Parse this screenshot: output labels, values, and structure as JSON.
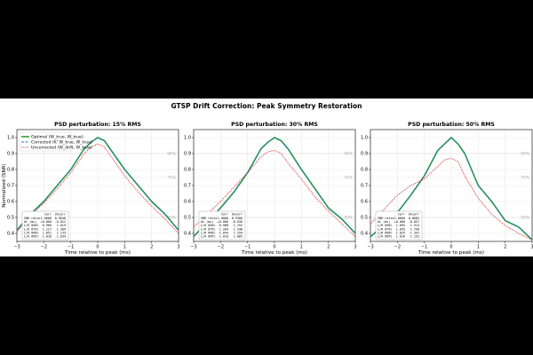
{
  "figure": {
    "title": "GTSP Drift Correction: Peak Symmetry Restoration",
    "colors": {
      "optimal": "#2ca02c",
      "corrected": "#1f77b4",
      "uncorrected": "#d62728",
      "grid": "#e6e6e6",
      "ref": "#bbbbbb"
    }
  },
  "chart_data": [
    {
      "type": "line",
      "title": "PSD perturbation: 15% RMS",
      "xlabel": "Time relative to peak (ms)",
      "ylabel": "Normalized ⟨SNR⟩",
      "xlim": [
        -3,
        3
      ],
      "ylim": [
        0.35,
        1.05
      ],
      "xticks": [
        "−3",
        "−2",
        "−1",
        "0",
        "1",
        "2",
        "3"
      ],
      "yticks": [
        "0.4",
        "0.5",
        "0.6",
        "0.7",
        "0.8",
        "0.9",
        "1.0"
      ],
      "ref_lines": [
        {
          "y": 0.9,
          "label": "90%"
        },
        {
          "y": 0.75,
          "label": "75%"
        },
        {
          "y": 0.5,
          "label": "50%"
        }
      ],
      "legend": {
        "placement": "top-left",
        "entries": [
          "Optimal (W_true, W_true)",
          "Corrected (K' W_true, W_true)",
          "Uncorrected (W_drift, W_true)"
        ]
      },
      "series": [
        {
          "name": "Optimal (W_true, W_true)",
          "style": "solid",
          "x": [
            -3,
            -2.5,
            -2,
            -1.5,
            -1,
            -0.5,
            -0.25,
            0,
            0.25,
            0.5,
            1,
            1.5,
            2,
            2.5,
            3
          ],
          "y": [
            0.42,
            0.52,
            0.6,
            0.7,
            0.8,
            0.93,
            0.97,
            1.0,
            0.98,
            0.92,
            0.8,
            0.7,
            0.6,
            0.52,
            0.42
          ]
        },
        {
          "name": "Corrected (K' W_true, W_true)",
          "style": "dashed",
          "x": [
            -3,
            -2.5,
            -2,
            -1.5,
            -1,
            -0.5,
            -0.25,
            0,
            0.25,
            0.5,
            1,
            1.5,
            2,
            2.5,
            3
          ],
          "y": [
            0.42,
            0.52,
            0.6,
            0.7,
            0.8,
            0.93,
            0.97,
            1.0,
            0.98,
            0.92,
            0.8,
            0.7,
            0.6,
            0.52,
            0.42
          ]
        },
        {
          "name": "Uncorrected (W_drift, W_true)",
          "style": "dotted",
          "x": [
            -3,
            -2.5,
            -2,
            -1.5,
            -1,
            -0.5,
            -0.25,
            0,
            0.25,
            0.5,
            1,
            1.5,
            2,
            2.5,
            3
          ],
          "y": [
            0.41,
            0.51,
            0.59,
            0.68,
            0.78,
            0.9,
            0.94,
            0.96,
            0.94,
            0.88,
            0.76,
            0.66,
            0.57,
            0.49,
            0.4
          ]
        }
      ],
      "table": {
        "headers": [
          "",
          "Corr",
          "Uncorr"
        ],
        "rows": [
          [
            "SNR ratio",
            "1.0000",
            "0.9648"
          ],
          [
            "Δt (ms)",
            "+0.000",
            "-0.012"
          ],
          [
            "L/R @50%",
            "0.966",
            "1.019"
          ],
          [
            "L/R @75%",
            "1.127",
            "1.309"
          ],
          [
            "L/R @90%",
            "1.051",
            "1.133"
          ],
          [
            "L/R @95%",
            "1.016",
            "1.034"
          ]
        ]
      }
    },
    {
      "type": "line",
      "title": "PSD perturbation: 30% RMS",
      "xlabel": "Time relative to peak (ms)",
      "ylabel": "",
      "xlim": [
        -3,
        3
      ],
      "ylim": [
        0.35,
        1.05
      ],
      "xticks": [
        "−3",
        "−2",
        "−1",
        "0",
        "1",
        "2",
        "3"
      ],
      "yticks": [
        "0.4",
        "0.5",
        "0.6",
        "0.7",
        "0.8",
        "0.9",
        "1.0"
      ],
      "ref_lines": [
        {
          "y": 0.9,
          "label": "90%"
        },
        {
          "y": 0.75,
          "label": "75%"
        },
        {
          "y": 0.5,
          "label": "50%"
        }
      ],
      "series": [
        {
          "name": "Optimal (W_true, W_true)",
          "style": "solid",
          "x": [
            -3,
            -2.5,
            -2,
            -1.5,
            -1,
            -0.5,
            -0.25,
            0,
            0.25,
            0.5,
            1,
            1.5,
            2,
            2.5,
            3
          ],
          "y": [
            0.38,
            0.47,
            0.56,
            0.66,
            0.78,
            0.93,
            0.97,
            1.0,
            0.98,
            0.93,
            0.8,
            0.68,
            0.56,
            0.49,
            0.4
          ]
        },
        {
          "name": "Corrected (K' W_true, W_true)",
          "style": "dashed",
          "x": [
            -3,
            -2.5,
            -2,
            -1.5,
            -1,
            -0.5,
            -0.25,
            0,
            0.25,
            0.5,
            1,
            1.5,
            2,
            2.5,
            3
          ],
          "y": [
            0.38,
            0.47,
            0.56,
            0.66,
            0.78,
            0.93,
            0.97,
            1.0,
            0.98,
            0.93,
            0.8,
            0.68,
            0.56,
            0.49,
            0.4
          ]
        },
        {
          "name": "Uncorrected (W_drift, W_true)",
          "style": "dotted",
          "x": [
            -3,
            -2.5,
            -2,
            -1.5,
            -1,
            -0.5,
            -0.25,
            0,
            0.25,
            0.5,
            1,
            1.5,
            2,
            2.5,
            3
          ],
          "y": [
            0.44,
            0.52,
            0.6,
            0.69,
            0.78,
            0.88,
            0.91,
            0.92,
            0.9,
            0.84,
            0.74,
            0.63,
            0.54,
            0.46,
            0.38
          ]
        }
      ],
      "table": {
        "headers": [
          "",
          "Corr",
          "Uncorr"
        ],
        "rows": [
          [
            "SNR ratio",
            "1.0000",
            "0.9308"
          ],
          [
            "Δt (ms)",
            "+0.000",
            "-0.036"
          ],
          [
            "L/R @50%",
            "0.988",
            "1.192"
          ],
          [
            "L/R @75%",
            "1.204",
            "1.548"
          ],
          [
            "L/R @90%",
            "1.044",
            "1.294"
          ],
          [
            "L/R @95%",
            "1.016",
            "1.085"
          ]
        ]
      }
    },
    {
      "type": "line",
      "title": "PSD perturbation: 50% RMS",
      "xlabel": "Time relative to peak (ms)",
      "ylabel": "",
      "xlim": [
        -3,
        3
      ],
      "ylim": [
        0.35,
        1.05
      ],
      "xticks": [
        "−3",
        "−2",
        "−1",
        "0",
        "1",
        "2",
        "3"
      ],
      "yticks": [
        "0.4",
        "0.5",
        "0.6",
        "0.7",
        "0.8",
        "0.9",
        "1.0"
      ],
      "ref_lines": [
        {
          "y": 0.9,
          "label": "90%"
        },
        {
          "y": 0.75,
          "label": "75%"
        },
        {
          "y": 0.5,
          "label": "50%"
        }
      ],
      "series": [
        {
          "name": "Optimal (W_true, W_true)",
          "style": "solid",
          "x": [
            -3,
            -2.5,
            -2,
            -1.5,
            -1,
            -0.5,
            -0.25,
            0,
            0.25,
            0.5,
            1,
            1.5,
            2,
            2.5,
            3
          ],
          "y": [
            0.38,
            0.45,
            0.53,
            0.64,
            0.76,
            0.92,
            0.96,
            1.0,
            0.96,
            0.9,
            0.7,
            0.6,
            0.48,
            0.44,
            0.36
          ]
        },
        {
          "name": "Corrected (K' W_true, W_true)",
          "style": "dashed",
          "x": [
            -3,
            -2.5,
            -2,
            -1.5,
            -1,
            -0.5,
            -0.25,
            0,
            0.25,
            0.5,
            1,
            1.5,
            2,
            2.5,
            3
          ],
          "y": [
            0.38,
            0.45,
            0.53,
            0.64,
            0.76,
            0.92,
            0.96,
            1.0,
            0.96,
            0.9,
            0.7,
            0.6,
            0.48,
            0.44,
            0.36
          ]
        },
        {
          "name": "Uncorrected (W_drift, W_true)",
          "style": "dotted",
          "x": [
            -3,
            -2.5,
            -2,
            -1.5,
            -1,
            -0.5,
            -0.25,
            0,
            0.25,
            0.5,
            1,
            1.5,
            2,
            2.5,
            3
          ],
          "y": [
            0.46,
            0.55,
            0.64,
            0.7,
            0.74,
            0.82,
            0.86,
            0.87,
            0.85,
            0.76,
            0.62,
            0.52,
            0.45,
            0.4,
            0.36
          ]
        }
      ],
      "table": {
        "headers": [
          "",
          "Corr",
          "Uncorr"
        ],
        "rows": [
          [
            "SNR ratio",
            "1.0000",
            "0.8682"
          ],
          [
            "Δt (ms)",
            "+0.000",
            "-0.057"
          ],
          [
            "L/R @50%",
            "1.095",
            "1.514"
          ],
          [
            "L/R @75%",
            "1.055",
            "1.790"
          ],
          [
            "L/R @90%",
            "1.029",
            "1.341"
          ],
          [
            "L/R @95%",
            "1.016",
            "1.152"
          ]
        ]
      }
    }
  ]
}
